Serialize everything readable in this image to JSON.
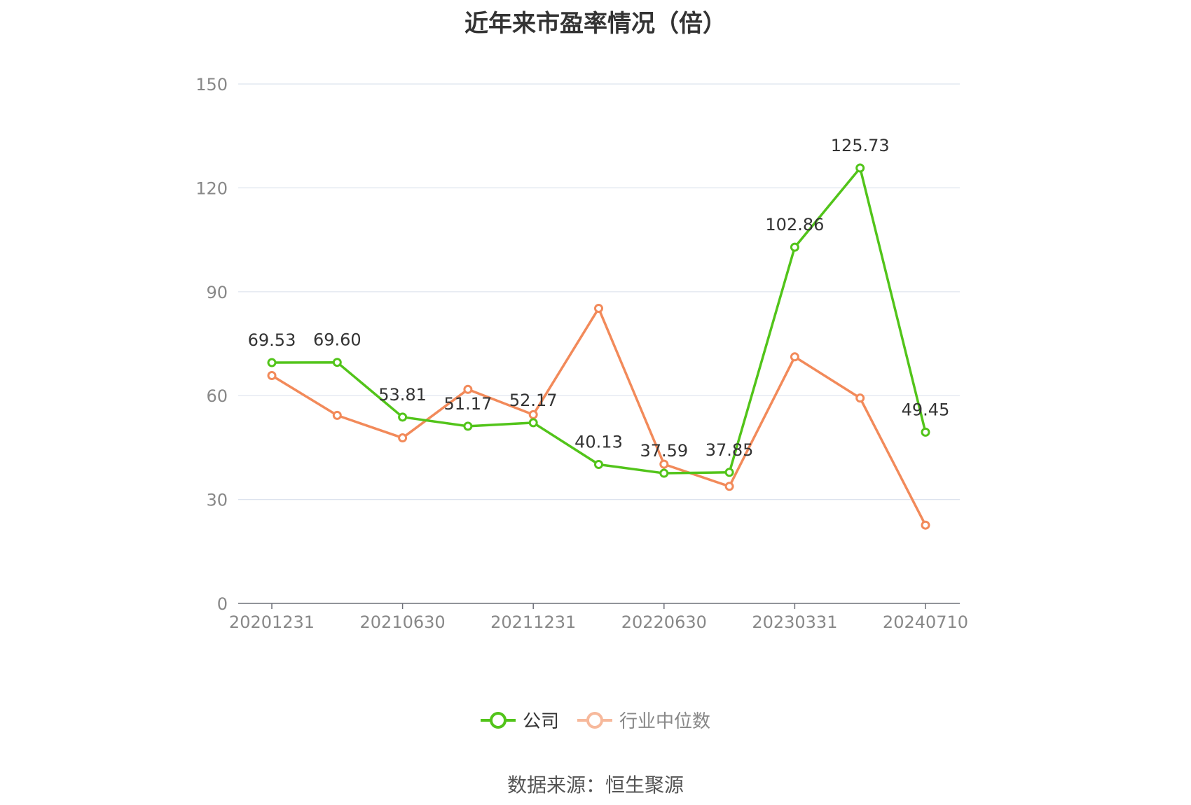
{
  "title": "近年来市盈率情况（倍）",
  "source": "数据来源：恒生聚源",
  "legend": [
    {
      "name": "公司",
      "color": "#52c41a"
    },
    {
      "name": "行业中位数",
      "color": "#f28a5a"
    }
  ],
  "chart_data": {
    "type": "line",
    "title": "近年来市盈率情况（倍）",
    "xlabel": "",
    "ylabel": "",
    "ylim": [
      0,
      150
    ],
    "yticks": [
      0,
      30,
      60,
      90,
      120,
      150
    ],
    "x_tick_labels": [
      "20201231",
      "20210630",
      "20211231",
      "20220630",
      "20230331",
      "20240710"
    ],
    "x_tick_positions": [
      0,
      2,
      4,
      6,
      8,
      10
    ],
    "grid": true,
    "legend_position": "bottom",
    "series": [
      {
        "name": "公司",
        "color": "#52c41a",
        "values": [
          69.53,
          69.6,
          53.81,
          51.17,
          52.17,
          40.13,
          37.59,
          37.85,
          102.86,
          125.73,
          49.45
        ],
        "labels": [
          "69.53",
          "69.60",
          "53.81",
          "51.17",
          "52.17",
          "40.13",
          "37.59",
          "37.85",
          "102.86",
          "125.73",
          "49.45"
        ]
      },
      {
        "name": "行业中位数",
        "color": "#f28a5a",
        "values": [
          65.8,
          54.3,
          47.8,
          61.8,
          54.5,
          85.2,
          40.2,
          33.8,
          71.2,
          59.3,
          22.6
        ]
      }
    ]
  }
}
